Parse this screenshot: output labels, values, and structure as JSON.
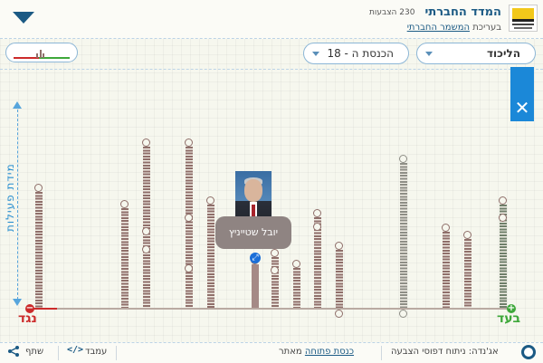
{
  "header": {
    "site_title": "המדד החברתי",
    "votes_count": "230 הצבעות",
    "editing_prefix": "בעריכת",
    "editing_org": "המשמר החברתי"
  },
  "toolbar": {
    "knesset_select": "הכנסת ה - 18",
    "party_select": "הליכוד"
  },
  "close_label": "✕",
  "chart": {
    "axis_label": "מידת פעילות",
    "against_label": "נגד",
    "for_label": "בעד",
    "against_icon": "−",
    "for_icon": "+"
  },
  "tooltip": {
    "member_name": "יובל שטייניץ",
    "share_icon": "⤢"
  },
  "chart_data": {
    "type": "bar",
    "x_extremes": [
      "נגד",
      "בעד"
    ],
    "bars": [
      {
        "x": 43,
        "height": 128,
        "color": "brown"
      },
      {
        "x": 138,
        "height": 110,
        "color": "brown"
      },
      {
        "x": 162,
        "height": 178,
        "color": "brown"
      },
      {
        "x": 209,
        "height": 178,
        "color": "brown"
      },
      {
        "x": 233,
        "height": 114,
        "color": "brown"
      },
      {
        "x": 282,
        "height": 48,
        "color": "brown"
      },
      {
        "x": 304,
        "height": 56,
        "color": "brown"
      },
      {
        "x": 328,
        "height": 44,
        "color": "brown"
      },
      {
        "x": 351,
        "height": 100,
        "color": "brown"
      },
      {
        "x": 375,
        "height": 64,
        "color": "brown"
      },
      {
        "x": 446,
        "height": 160,
        "color": "grey"
      },
      {
        "x": 493,
        "height": 84,
        "color": "brown"
      },
      {
        "x": 517,
        "height": 76,
        "color": "brown"
      },
      {
        "x": 556,
        "height": 114,
        "color": "green"
      }
    ]
  },
  "footer": {
    "share": "שתף",
    "embed": "עמבד",
    "source_prefix": "מאתר",
    "source_link": "כנסת פתוחה",
    "agenda": "אג'נדה: ניתוח דפוסי הצבעה"
  }
}
